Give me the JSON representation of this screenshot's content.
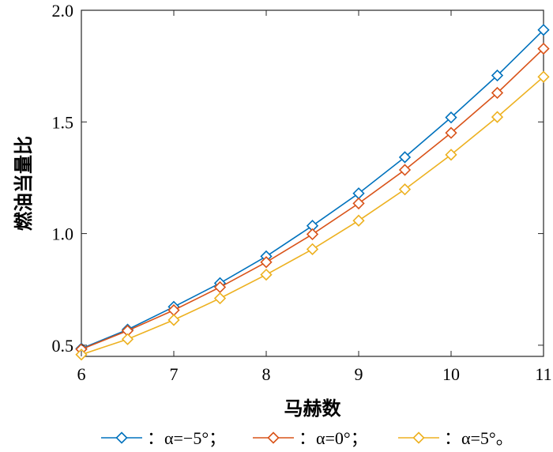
{
  "chart_data": {
    "type": "line",
    "xlabel": "马赫数",
    "ylabel": "燃油当量比",
    "xlim": [
      6,
      11
    ],
    "ylim": [
      0.45,
      2.0
    ],
    "xticks": [
      6,
      7,
      8,
      9,
      10,
      11
    ],
    "xtick_labels": [
      "6",
      "7",
      "8",
      "9",
      "10",
      "11"
    ],
    "yticks": [
      0.5,
      1.0,
      1.5,
      2.0
    ],
    "ytick_labels": [
      "0.5",
      "1.0",
      "1.5",
      "2.0"
    ],
    "grid": false,
    "legend_position": "bottom",
    "marker": "diamond",
    "x": [
      6,
      6.5,
      7,
      7.5,
      8,
      8.5,
      9,
      9.5,
      10,
      10.5,
      11
    ],
    "series": [
      {
        "name": "：α=−5°；",
        "color": "#0072BD",
        "values": [
          0.485,
          0.57,
          0.672,
          0.778,
          0.898,
          1.035,
          1.18,
          1.342,
          1.52,
          1.708,
          1.912
        ]
      },
      {
        "name": "：α=0°；",
        "color": "#D95319",
        "values": [
          0.482,
          0.565,
          0.657,
          0.76,
          0.872,
          0.997,
          1.135,
          1.285,
          1.451,
          1.63,
          1.828
        ]
      },
      {
        "name": "：α=5°。",
        "color": "#EDB120",
        "values": [
          0.458,
          0.527,
          0.613,
          0.71,
          0.816,
          0.93,
          1.058,
          1.198,
          1.353,
          1.522,
          1.702
        ]
      }
    ]
  }
}
